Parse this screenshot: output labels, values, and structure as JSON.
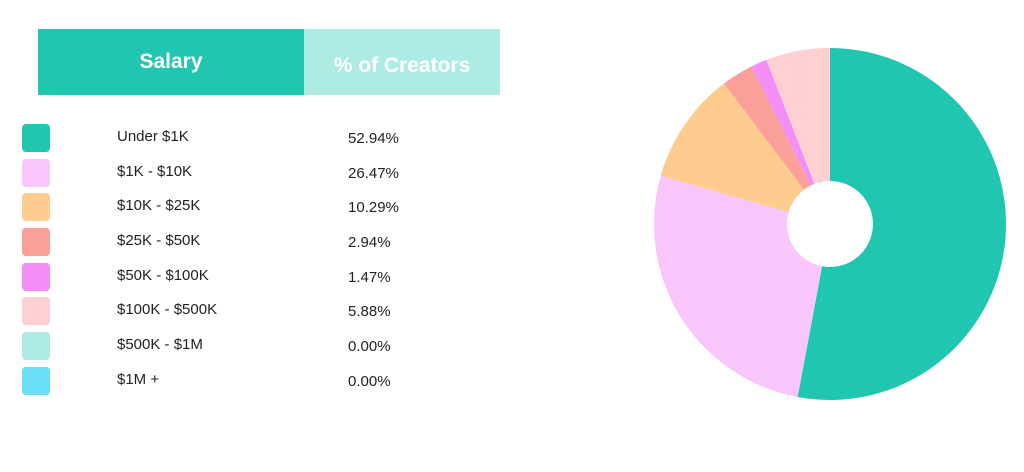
{
  "table": {
    "header_salary": "Salary",
    "header_pct": "% of Creators"
  },
  "chart_data": {
    "type": "pie",
    "donut": true,
    "categories": [
      "Under $1K",
      "$1K - $10K",
      "$10K - $25K",
      "$25K - $50K",
      "$50K - $100K",
      "$100K - $500K",
      "$500K - $1M",
      "$1M +"
    ],
    "values": [
      52.94,
      26.47,
      10.29,
      2.94,
      1.47,
      5.88,
      0.0,
      0.0
    ],
    "value_labels": [
      "52.94%",
      "26.47%",
      "10.29%",
      "2.94%",
      "1.47%",
      "5.88%",
      "0.00%",
      "0.00%"
    ],
    "colors": [
      "#21c6b1",
      "#f8c6fa",
      "#fdcc8e",
      "#fb9f99",
      "#f28ef5",
      "#ffd0d1",
      "#aeece3",
      "#68def7"
    ],
    "legend_placement": "left"
  }
}
